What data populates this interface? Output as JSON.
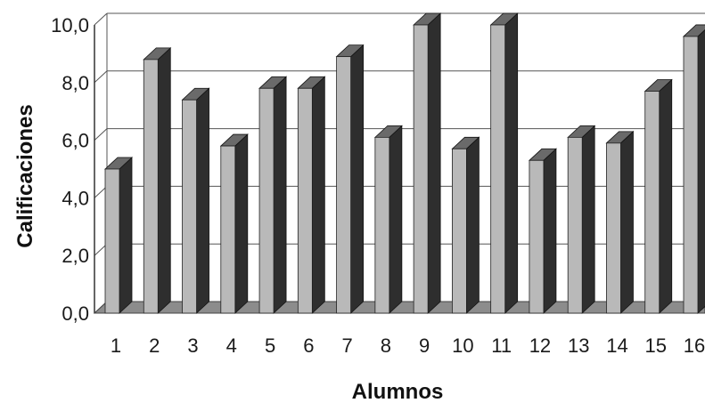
{
  "chart_data": {
    "type": "bar",
    "style": "3d-column",
    "xlabel": "Alumnos",
    "ylabel": "Calificaciones",
    "categories": [
      "1",
      "2",
      "3",
      "4",
      "5",
      "6",
      "7",
      "8",
      "9",
      "10",
      "11",
      "12",
      "13",
      "14",
      "15",
      "16"
    ],
    "values": [
      5.0,
      8.8,
      7.4,
      5.8,
      7.8,
      7.8,
      8.9,
      6.1,
      10.0,
      5.7,
      10.0,
      5.3,
      6.1,
      5.9,
      7.7,
      9.6
    ],
    "ylim": [
      0,
      10
    ],
    "yticks": [
      "0,0",
      "2,0",
      "4,0",
      "6,0",
      "8,0",
      "10,0"
    ],
    "ytick_values": [
      0,
      2,
      4,
      6,
      8,
      10
    ],
    "grid": true,
    "legend": "none",
    "colors": {
      "bar_front": "#b9b9b9",
      "bar_side": "#2e2e2e",
      "bar_top": "#6a6a6a",
      "gridline": "#555555",
      "floor": "#8c8c8c"
    }
  }
}
